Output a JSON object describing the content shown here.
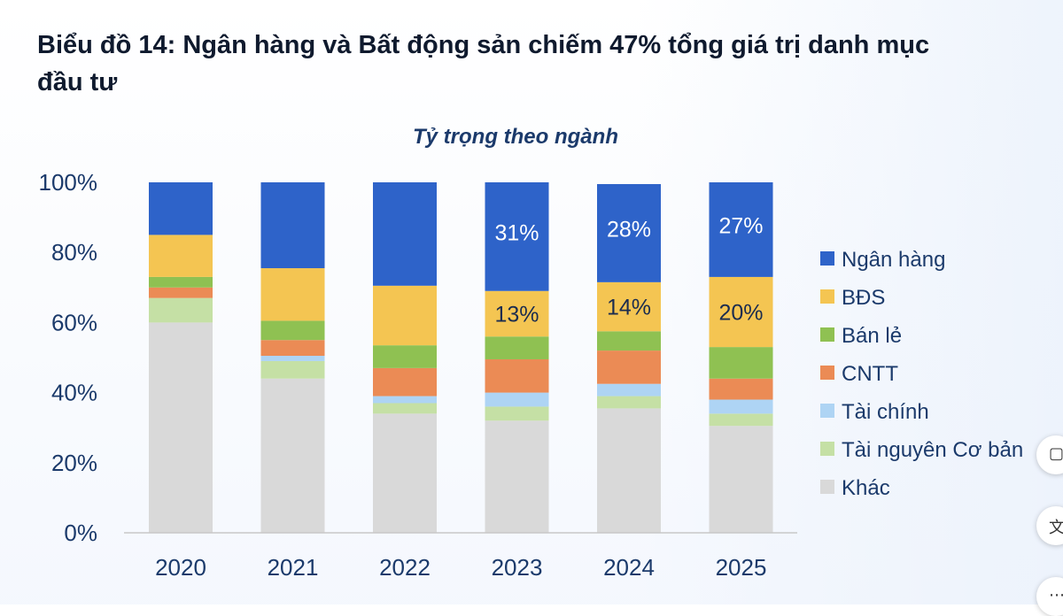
{
  "page": {
    "title": "Biểu đồ 14: Ngân hàng và Bất động sản chiếm 47% tổng giá trị danh mục đầu tư"
  },
  "side_buttons": [
    {
      "icon": "comment-icon"
    },
    {
      "icon": "translate-icon"
    },
    {
      "icon": "more-icon"
    }
  ],
  "chart_data": {
    "type": "bar",
    "stacked": true,
    "title": "Tỷ trọng theo ngành",
    "categories": [
      "2020",
      "2021",
      "2022",
      "2023",
      "2024",
      "2025"
    ],
    "ylim": [
      0,
      100
    ],
    "yticks": [
      "0%",
      "20%",
      "40%",
      "60%",
      "80%",
      "100%"
    ],
    "legend_position": "right",
    "grid": false,
    "series": [
      {
        "name": "Khác",
        "color": "#d9d9d9",
        "values": [
          60,
          44,
          34,
          32,
          35.5,
          30.5
        ]
      },
      {
        "name": "Tài nguyên Cơ bản",
        "color": "#c5e0a5",
        "values": [
          7,
          5,
          3,
          4,
          3.5,
          3.5
        ]
      },
      {
        "name": "Tài chính",
        "color": "#aed4f4",
        "values": [
          0,
          1.5,
          2,
          4,
          3.5,
          4
        ]
      },
      {
        "name": "CNTT",
        "color": "#eb8b55",
        "values": [
          3,
          4.5,
          8,
          9.5,
          9.5,
          6
        ]
      },
      {
        "name": "Bán lẻ",
        "color": "#8fc152",
        "values": [
          3,
          5.5,
          6.5,
          6.5,
          5.5,
          9
        ]
      },
      {
        "name": "BĐS",
        "color": "#f4c552",
        "values": [
          12,
          15,
          17,
          13,
          14,
          20
        ]
      },
      {
        "name": "Ngân hàng",
        "color": "#2e63c9",
        "values": [
          15,
          24.5,
          29.5,
          31,
          28,
          27
        ]
      }
    ],
    "data_labels": [
      {
        "series": "Ngân hàng",
        "category": "2023",
        "text": "31%"
      },
      {
        "series": "Ngân hàng",
        "category": "2024",
        "text": "28%"
      },
      {
        "series": "Ngân hàng",
        "category": "2025",
        "text": "27%"
      },
      {
        "series": "BĐS",
        "category": "2023",
        "text": "13%"
      },
      {
        "series": "BĐS",
        "category": "2024",
        "text": "14%"
      },
      {
        "series": "BĐS",
        "category": "2025",
        "text": "20%"
      }
    ],
    "legend_order": [
      "Ngân hàng",
      "BĐS",
      "Bán lẻ",
      "CNTT",
      "Tài chính",
      "Tài nguyên Cơ bản",
      "Khác"
    ]
  }
}
